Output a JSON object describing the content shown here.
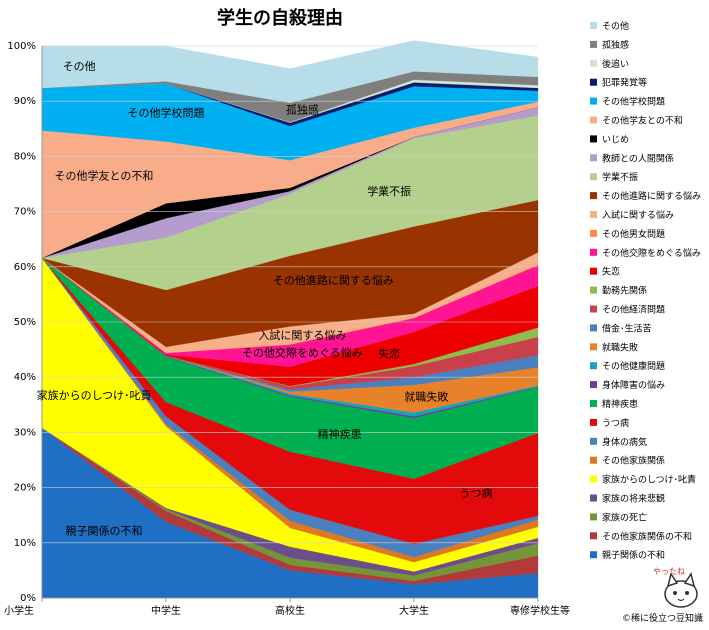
{
  "chart_data": {
    "type": "area",
    "title": "学生の自殺理由",
    "categories": [
      "小学生",
      "中学生",
      "高校生",
      "大学生",
      "専修学校生等"
    ],
    "ylim": [
      0,
      100
    ],
    "yticks": [
      "0%",
      "10%",
      "20%",
      "30%",
      "40%",
      "50%",
      "60%",
      "70%",
      "80%",
      "90%",
      "100%"
    ],
    "legend_position": "right",
    "series": [
      {
        "name": "親子関係の不和",
        "color": "#1f6fc4",
        "values": [
          30.8,
          13.8,
          5.0,
          2.5,
          4.5
        ],
        "label": "親子関係の不和"
      },
      {
        "name": "その他家族関係の不和",
        "color": "#b33a3a",
        "values": [
          0,
          2.0,
          1.0,
          0.6,
          3.2
        ],
        "label": ""
      },
      {
        "name": "家族の死亡",
        "color": "#74963b",
        "values": [
          0,
          0.3,
          1.3,
          1.0,
          2.2
        ],
        "label": ""
      },
      {
        "name": "家族の将来悲観",
        "color": "#6b4e8a",
        "values": [
          0,
          0.2,
          2.0,
          0.7,
          1.0
        ],
        "label": ""
      },
      {
        "name": "家族からのしつけ･叱責",
        "color": "#ffff00",
        "values": [
          30.8,
          14.8,
          3.4,
          1.7,
          2.0
        ],
        "label": "家族からのしつけ･叱責"
      },
      {
        "name": "その他家族関係",
        "color": "#e07820",
        "values": [
          0,
          0.4,
          1.3,
          0.9,
          1.3
        ],
        "label": ""
      },
      {
        "name": "身体の病気",
        "color": "#4a7fc0",
        "values": [
          0,
          1.4,
          2.0,
          2.4,
          0.7
        ],
        "label": ""
      },
      {
        "name": "うつ病",
        "color": "#e20a0a",
        "values": [
          0,
          2.6,
          10.5,
          11.8,
          15.0
        ],
        "label": "うつ病"
      },
      {
        "name": "精神疾患",
        "color": "#00b050",
        "values": [
          0,
          8.2,
          10.0,
          11.0,
          8.3
        ],
        "label": "精神疾患"
      },
      {
        "name": "身体障害の悩み",
        "color": "#6a3d9a",
        "values": [
          0,
          0.1,
          0.2,
          0.3,
          0.1
        ],
        "label": ""
      },
      {
        "name": "その他健康問題",
        "color": "#17a5b5",
        "values": [
          0,
          0.1,
          0.3,
          0.7,
          0.2
        ],
        "label": ""
      },
      {
        "name": "就職失敗",
        "color": "#e8822a",
        "values": [
          0,
          0,
          0.4,
          5.0,
          3.3
        ],
        "label": "就職失敗"
      },
      {
        "name": "借金･生活苦",
        "color": "#4a7fc0",
        "values": [
          0,
          0,
          0.4,
          1.4,
          2.2
        ],
        "label": ""
      },
      {
        "name": "その他経済問題",
        "color": "#c8404a",
        "values": [
          0,
          0,
          0.5,
          2.0,
          3.3
        ],
        "label": ""
      },
      {
        "name": "勤務先関係",
        "color": "#8fbc4a",
        "values": [
          0,
          0,
          0.1,
          0.4,
          1.7
        ],
        "label": ""
      },
      {
        "name": "失恋",
        "color": "#ee0000",
        "values": [
          0,
          0.2,
          3.5,
          5.8,
          7.5
        ],
        "label": "失恋"
      },
      {
        "name": "その他交際をめぐる悩み",
        "color": "#ff1493",
        "values": [
          0,
          0.3,
          4.0,
          2.5,
          3.8
        ],
        "label": "その他交際をめぐる悩み"
      },
      {
        "name": "その他男女問題",
        "color": "#ff8c42",
        "values": [
          0,
          0,
          0.1,
          0.1,
          0.1
        ],
        "label": ""
      },
      {
        "name": "入試に関する悩み",
        "color": "#f7b08a",
        "values": [
          0,
          1.1,
          3.2,
          0.7,
          2.2
        ],
        "label": "入試に関する悩み"
      },
      {
        "name": "その他進路に関する悩み",
        "color": "#993300",
        "values": [
          0,
          10.3,
          12.8,
          15.8,
          9.5
        ],
        "label": "その他進路に関する悩み"
      },
      {
        "name": "学業不振",
        "color": "#b3d08c",
        "values": [
          0,
          9.5,
          11.2,
          16.0,
          15.3
        ],
        "label": "学業不振"
      },
      {
        "name": "教師との人間関係",
        "color": "#b49ccc",
        "values": [
          0,
          3.5,
          0.5,
          0.2,
          1.5
        ],
        "label": ""
      },
      {
        "name": "いじめ",
        "color": "#000000",
        "values": [
          0,
          2.7,
          0.6,
          0,
          0
        ],
        "label": ""
      },
      {
        "name": "その他学友との不和",
        "color": "#f9ac8a",
        "values": [
          23.1,
          11.2,
          5.0,
          1.7,
          1.0
        ],
        "label": "その他学友との不和"
      },
      {
        "name": "その他学校問題",
        "color": "#00b0f0",
        "values": [
          7.7,
          10.5,
          6.2,
          7.5,
          2.0
        ],
        "label": "その他学校問題"
      },
      {
        "name": "犯罪発覚等",
        "color": "#0a1a6e",
        "values": [
          0,
          0,
          0.6,
          0.7,
          0.5
        ],
        "label": ""
      },
      {
        "name": "後追い",
        "color": "#cfe6cf",
        "values": [
          0,
          0,
          0.1,
          0.5,
          0.5
        ],
        "label": ""
      },
      {
        "name": "孤独感",
        "color": "#7f7f7f",
        "values": [
          0,
          0.4,
          3.5,
          1.5,
          1.5
        ],
        "label": "孤独感"
      },
      {
        "name": "その他",
        "color": "#b6dde8",
        "values": [
          7.6,
          6.4,
          6.2,
          5.6,
          3.6
        ],
        "label": "その他"
      }
    ],
    "legend_order": [
      "その他",
      "孤独感",
      "後追い",
      "犯罪発覚等",
      "その他学校問題",
      "その他学友との不和",
      "いじめ",
      "教師との人間関係",
      "学業不振",
      "その他進路に関する悩み",
      "入試に関する悩み",
      "その他男女問題",
      "その他交際をめぐる悩み",
      "失恋",
      "勤務先関係",
      "その他経済問題",
      "借金･生活苦",
      "就職失敗",
      "その他健康問題",
      "身体障害の悩み",
      "精神疾患",
      "うつ病",
      "身体の病気",
      "その他家族関係",
      "家族からのしつけ･叱責",
      "家族の将来悲観",
      "家族の死亡",
      "その他家族関係の不和",
      "親子関係の不和"
    ]
  },
  "credit": "©稀に役立つ豆知識",
  "mascot_text": "やったね"
}
